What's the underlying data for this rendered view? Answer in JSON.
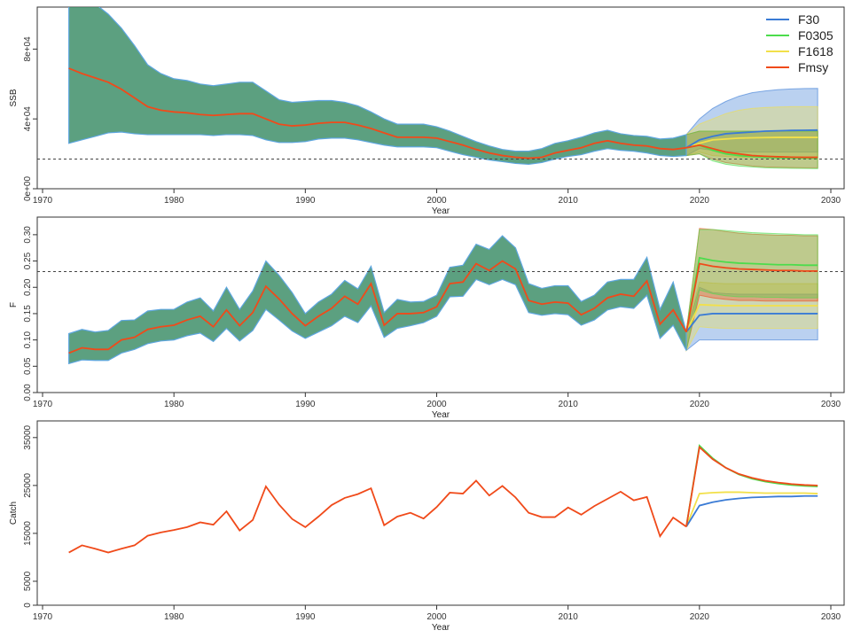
{
  "colors": {
    "F30": "#3a7bd5",
    "F0305": "#4cdc4c",
    "F1618": "#f2e04a",
    "Fmsy": "#f04a1a",
    "hist_band": "#3f8f6a",
    "hist_band_edge": "#5ea6e0"
  },
  "legend": {
    "items": [
      {
        "name": "F30",
        "color": "#3a7bd5"
      },
      {
        "name": "F0305",
        "color": "#4cdc4c"
      },
      {
        "name": "F1618",
        "color": "#f2e04a"
      },
      {
        "name": "Fmsy",
        "color": "#f04a1a"
      }
    ]
  },
  "chart_data": [
    {
      "type": "area",
      "panel": "ssb",
      "xlabel": "Year",
      "ylabel": "SSB",
      "xlim": [
        1970,
        2030
      ],
      "ylim": [
        0,
        100000
      ],
      "xticks": [
        1970,
        1980,
        1990,
        2000,
        2010,
        2020,
        2030
      ],
      "yticks": [
        0,
        40000,
        80000
      ],
      "ytick_labels": [
        "0e+00",
        "4e+04",
        "8e+04"
      ],
      "reference_line": 17000,
      "historical": {
        "years": [
          1972,
          1973,
          1974,
          1975,
          1976,
          1977,
          1978,
          1979,
          1980,
          1981,
          1982,
          1983,
          1984,
          1985,
          1986,
          1987,
          1988,
          1989,
          1990,
          1991,
          1992,
          1993,
          1994,
          1995,
          1996,
          1997,
          1998,
          1999,
          2000,
          2001,
          2002,
          2003,
          2004,
          2005,
          2006,
          2007,
          2008,
          2009,
          2010,
          2011,
          2012,
          2013,
          2014,
          2015,
          2016,
          2017,
          2018,
          2019
        ],
        "median": [
          69000,
          66000,
          63500,
          61000,
          57000,
          52000,
          47000,
          45000,
          44000,
          43500,
          42500,
          42000,
          42500,
          43000,
          43000,
          40000,
          37000,
          36000,
          36500,
          37500,
          38000,
          38000,
          36500,
          34500,
          32000,
          29500,
          29500,
          29500,
          29000,
          27000,
          25000,
          22500,
          20500,
          19000,
          18000,
          17500,
          18000,
          20500,
          22000,
          23500,
          26000,
          27500,
          26000,
          25000,
          24500,
          23000,
          22500,
          23500
        ],
        "lower": [
          26000,
          28000,
          30000,
          32000,
          32500,
          31500,
          31000,
          31000,
          31000,
          31000,
          31000,
          30500,
          31000,
          31000,
          30500,
          28000,
          26500,
          26500,
          27000,
          28500,
          29000,
          29000,
          28000,
          26500,
          25000,
          24000,
          24000,
          24000,
          23500,
          21500,
          19500,
          18000,
          16500,
          15500,
          14500,
          14000,
          15000,
          17000,
          18500,
          19500,
          21500,
          23000,
          22000,
          21500,
          20500,
          19000,
          18500,
          19000
        ],
        "upper": [
          123000,
          114000,
          106000,
          100000,
          92000,
          82000,
          71000,
          66000,
          63000,
          62000,
          60000,
          59000,
          60000,
          61000,
          61000,
          56000,
          51000,
          49500,
          50000,
          50500,
          50500,
          49500,
          47500,
          44000,
          40000,
          37000,
          37000,
          37000,
          35500,
          33000,
          30000,
          27000,
          24500,
          22500,
          21500,
          21500,
          23000,
          26000,
          27500,
          29500,
          32000,
          33500,
          31500,
          30500,
          30000,
          28500,
          29000,
          31000
        ]
      },
      "projections": {
        "years": [
          2020,
          2021,
          2022,
          2023,
          2024,
          2025,
          2026,
          2027,
          2028,
          2029
        ],
        "series": [
          {
            "name": "F30",
            "median": [
              28000,
              30000,
              31500,
              32000,
              32500,
              33000,
              33200,
              33400,
              33500,
              33600
            ],
            "lower": [
              23000,
              22000,
              21500,
              21000,
              21000,
              21000,
              21000,
              21000,
              21000,
              21000
            ],
            "upper": [
              40000,
              46000,
              50000,
              53000,
              55000,
              56000,
              56800,
              57200,
              57400,
              57500
            ]
          },
          {
            "name": "F0305",
            "median": [
              25000,
              22000,
              20000,
              19000,
              18500,
              18000,
              17800,
              17700,
              17600,
              17500
            ],
            "lower": [
              20000,
              16000,
              14000,
              13000,
              12500,
              12000,
              11800,
              11700,
              11600,
              11500
            ],
            "upper": [
              33000,
              33000,
              33000,
              33000,
              33000,
              33000,
              33000,
              33000,
              33000,
              33000
            ]
          },
          {
            "name": "F1618",
            "median": [
              26000,
              28000,
              28500,
              29000,
              29200,
              29300,
              29400,
              29400,
              29400,
              29400
            ],
            "lower": [
              21000,
              19000,
              18500,
              18000,
              18000,
              18000,
              18000,
              18000,
              18000,
              18000
            ],
            "upper": [
              37000,
              40000,
              43000,
              45000,
              46000,
              46500,
              46800,
              47000,
              47000,
              47000
            ]
          },
          {
            "name": "Fmsy",
            "median": [
              25000,
              23000,
              21000,
              20000,
              19000,
              18600,
              18300,
              18100,
              18000,
              18000
            ],
            "lower": [
              20000,
              17000,
              15000,
              14000,
              13000,
              12500,
              12300,
              12100,
              12000,
              12000
            ],
            "upper": [
              33000,
              33000,
              33000,
              33000,
              33000,
              33000,
              33000,
              33000,
              33000,
              33000
            ]
          }
        ]
      }
    },
    {
      "type": "area",
      "panel": "f",
      "xlabel": "Year",
      "ylabel": "F",
      "xlim": [
        1970,
        2030
      ],
      "ylim": [
        0,
        0.32
      ],
      "xticks": [
        1970,
        1980,
        1990,
        2000,
        2010,
        2020,
        2030
      ],
      "yticks": [
        0.0,
        0.05,
        0.1,
        0.15,
        0.2,
        0.25,
        0.3
      ],
      "ytick_labels": [
        "0.00",
        "0.05",
        "0.10",
        "0.15",
        "0.20",
        "0.25",
        "0.30"
      ],
      "reference_line": 0.23,
      "historical": {
        "years": [
          1972,
          1973,
          1974,
          1975,
          1976,
          1977,
          1978,
          1979,
          1980,
          1981,
          1982,
          1983,
          1984,
          1985,
          1986,
          1987,
          1988,
          1989,
          1990,
          1991,
          1992,
          1993,
          1994,
          1995,
          1996,
          1997,
          1998,
          1999,
          2000,
          2001,
          2002,
          2003,
          2004,
          2005,
          2006,
          2007,
          2008,
          2009,
          2010,
          2011,
          2012,
          2013,
          2014,
          2015,
          2016,
          2017,
          2018,
          2019
        ],
        "median": [
          0.075,
          0.085,
          0.082,
          0.082,
          0.1,
          0.105,
          0.12,
          0.125,
          0.128,
          0.138,
          0.145,
          0.125,
          0.157,
          0.127,
          0.152,
          0.202,
          0.178,
          0.15,
          0.127,
          0.145,
          0.16,
          0.183,
          0.168,
          0.207,
          0.128,
          0.15,
          0.15,
          0.152,
          0.163,
          0.207,
          0.21,
          0.245,
          0.232,
          0.25,
          0.235,
          0.175,
          0.168,
          0.172,
          0.17,
          0.148,
          0.16,
          0.18,
          0.187,
          0.183,
          0.212,
          0.13,
          0.157,
          0.115
        ],
        "lower": [
          0.055,
          0.062,
          0.061,
          0.061,
          0.075,
          0.082,
          0.093,
          0.098,
          0.1,
          0.108,
          0.113,
          0.097,
          0.122,
          0.098,
          0.118,
          0.158,
          0.138,
          0.117,
          0.103,
          0.115,
          0.127,
          0.145,
          0.133,
          0.165,
          0.105,
          0.122,
          0.127,
          0.133,
          0.145,
          0.182,
          0.183,
          0.215,
          0.205,
          0.215,
          0.205,
          0.152,
          0.147,
          0.15,
          0.148,
          0.128,
          0.138,
          0.157,
          0.163,
          0.16,
          0.185,
          0.103,
          0.128,
          0.08
        ],
        "upper": [
          0.112,
          0.12,
          0.115,
          0.118,
          0.137,
          0.138,
          0.155,
          0.158,
          0.158,
          0.172,
          0.18,
          0.155,
          0.2,
          0.158,
          0.193,
          0.25,
          0.223,
          0.19,
          0.15,
          0.172,
          0.187,
          0.213,
          0.197,
          0.24,
          0.152,
          0.177,
          0.172,
          0.173,
          0.185,
          0.238,
          0.242,
          0.282,
          0.272,
          0.298,
          0.275,
          0.207,
          0.198,
          0.203,
          0.203,
          0.173,
          0.185,
          0.21,
          0.215,
          0.215,
          0.257,
          0.158,
          0.21,
          0.115
        ]
      },
      "projections": {
        "years": [
          2020,
          2021,
          2022,
          2023,
          2024,
          2025,
          2026,
          2027,
          2028,
          2029
        ],
        "series": [
          {
            "name": "F30",
            "median": [
              0.147,
              0.15,
              0.15,
              0.15,
              0.15,
              0.15,
              0.15,
              0.15,
              0.15,
              0.15
            ],
            "lower": [
              0.1,
              0.1,
              0.1,
              0.1,
              0.1,
              0.1,
              0.1,
              0.1,
              0.1,
              0.1
            ],
            "upper": [
              0.2,
              0.19,
              0.188,
              0.187,
              0.187,
              0.187,
              0.187,
              0.187,
              0.187,
              0.187
            ]
          },
          {
            "name": "F0305",
            "median": [
              0.256,
              0.251,
              0.248,
              0.246,
              0.245,
              0.244,
              0.243,
              0.243,
              0.242,
              0.242
            ],
            "lower": [
              0.195,
              0.188,
              0.184,
              0.182,
              0.182,
              0.181,
              0.181,
              0.18,
              0.18,
              0.18
            ],
            "upper": [
              0.31,
              0.31,
              0.308,
              0.306,
              0.304,
              0.303,
              0.302,
              0.301,
              0.3,
              0.3
            ]
          },
          {
            "name": "F1618",
            "median": [
              0.167,
              0.166,
              0.165,
              0.165,
              0.165,
              0.165,
              0.165,
              0.165,
              0.165,
              0.165
            ],
            "lower": [
              0.125,
              0.123,
              0.122,
              0.122,
              0.122,
              0.122,
              0.122,
              0.122,
              0.122,
              0.122
            ],
            "upper": [
              0.21,
              0.208,
              0.207,
              0.207,
              0.207,
              0.207,
              0.207,
              0.207,
              0.207,
              0.207
            ]
          },
          {
            "name": "Fmsy",
            "median": [
              0.245,
              0.24,
              0.237,
              0.235,
              0.234,
              0.233,
              0.232,
              0.232,
              0.231,
              0.231
            ],
            "lower": [
              0.185,
              0.18,
              0.177,
              0.175,
              0.175,
              0.174,
              0.174,
              0.174,
              0.174,
              0.174
            ],
            "upper": [
              0.312,
              0.31,
              0.306,
              0.303,
              0.301,
              0.3,
              0.299,
              0.299,
              0.298,
              0.298
            ]
          }
        ]
      }
    },
    {
      "type": "line",
      "panel": "catch",
      "xlabel": "Year",
      "ylabel": "Catch",
      "xlim": [
        1970,
        2030
      ],
      "ylim": [
        0,
        37000
      ],
      "xticks": [
        1970,
        1980,
        1990,
        2000,
        2010,
        2020,
        2030
      ],
      "yticks": [
        0,
        5000,
        15000,
        25000,
        35000
      ],
      "ytick_labels": [
        "0",
        "5000",
        "15000",
        "25000",
        "35000"
      ],
      "historical": {
        "years": [
          1972,
          1973,
          1974,
          1975,
          1976,
          1977,
          1978,
          1979,
          1980,
          1981,
          1982,
          1983,
          1984,
          1985,
          1986,
          1987,
          1988,
          1989,
          1990,
          1991,
          1992,
          1993,
          1994,
          1995,
          1996,
          1997,
          1998,
          1999,
          2000,
          2001,
          2002,
          2003,
          2004,
          2005,
          2006,
          2007,
          2008,
          2009,
          2010,
          2011,
          2012,
          2013,
          2014,
          2015,
          2016,
          2017,
          2018,
          2019
        ],
        "median": [
          11000,
          12500,
          11800,
          11000,
          11800,
          12500,
          14500,
          15200,
          15700,
          16300,
          17300,
          16800,
          19600,
          15600,
          17800,
          24800,
          21000,
          18000,
          16300,
          18500,
          20900,
          22400,
          23200,
          24400,
          16700,
          18500,
          19300,
          18100,
          20500,
          23500,
          23300,
          26000,
          22900,
          24900,
          22500,
          19300,
          18400,
          18400,
          20400,
          18900,
          20700,
          22200,
          23700,
          21900,
          22600,
          14400,
          18300,
          16400
        ]
      },
      "projections": {
        "years": [
          2019,
          2020,
          2021,
          2022,
          2023,
          2024,
          2025,
          2026,
          2027,
          2028,
          2029
        ],
        "series": [
          {
            "name": "F30",
            "median": [
              16400,
              20800,
              21500,
              22000,
              22300,
              22500,
              22600,
              22700,
              22700,
              22800,
              22800
            ]
          },
          {
            "name": "F0305",
            "median": [
              16400,
              33300,
              30700,
              28700,
              27300,
              26400,
              25800,
              25400,
              25100,
              24900,
              24800
            ]
          },
          {
            "name": "F1618",
            "median": [
              16400,
              23300,
              23500,
              23600,
              23600,
              23500,
              23400,
              23400,
              23400,
              23400,
              23300
            ]
          },
          {
            "name": "Fmsy",
            "median": [
              16400,
              33000,
              30500,
              28700,
              27400,
              26600,
              26000,
              25600,
              25300,
              25100,
              25000
            ]
          }
        ]
      }
    }
  ]
}
